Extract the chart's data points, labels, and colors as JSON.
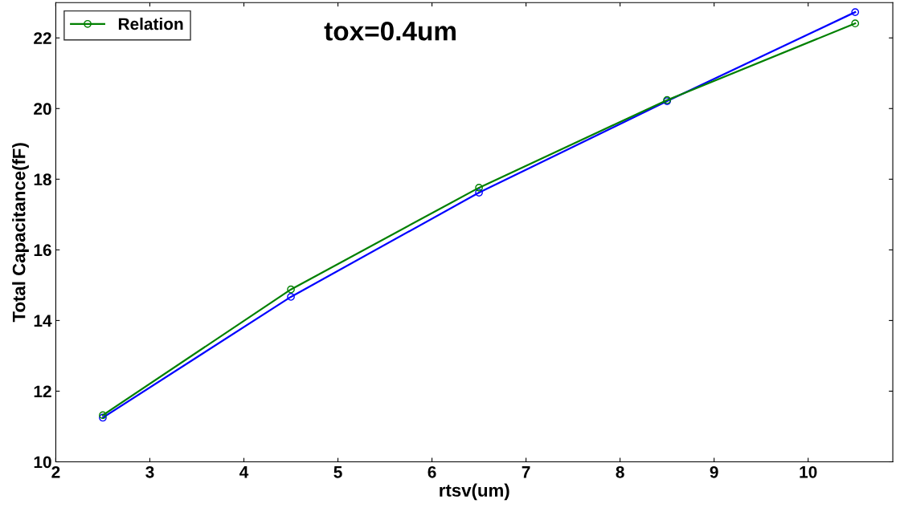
{
  "chart_data": {
    "type": "line",
    "xlabel": "rtsv(um)",
    "ylabel": "Total Capacitance(fF)",
    "annotations": [
      "tox=0.4um"
    ],
    "x": [
      2.5,
      4.5,
      6.5,
      8.5,
      10.5
    ],
    "series": [
      {
        "color": "#0000ff",
        "values": [
          11.25,
          14.67,
          17.62,
          20.21,
          22.73
        ]
      },
      {
        "name": "Relation",
        "color": "#008000",
        "values": [
          11.32,
          14.88,
          17.76,
          20.24,
          22.41
        ]
      }
    ],
    "xlim": [
      2,
      10.9
    ],
    "xticks": [
      2,
      3,
      4,
      5,
      6,
      7,
      8,
      9,
      10
    ],
    "ylim": [
      10,
      23
    ],
    "yticks": [
      10,
      12,
      14,
      16,
      18,
      20,
      22
    ],
    "grid": false,
    "legend": "top left",
    "marker": "circle",
    "line_style": "solid"
  }
}
